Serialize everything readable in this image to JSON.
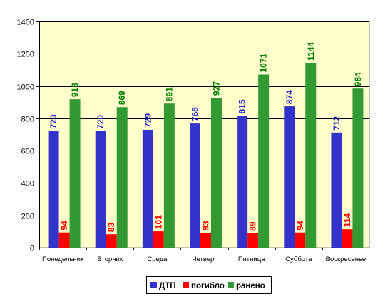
{
  "chart_data": {
    "type": "bar",
    "title": "",
    "xlabel": "",
    "ylabel": "",
    "ylim": [
      0,
      1400
    ],
    "yticks": [
      0,
      200,
      400,
      600,
      800,
      1000,
      1200,
      1400
    ],
    "grid": true,
    "legend_position": "bottom",
    "categories": [
      "Понедельник",
      "Вторник",
      "Среда",
      "Четверг",
      "Пятница",
      "Суббота",
      "Воскресенье"
    ],
    "series": [
      {
        "name": "ДТП",
        "color": "#3333cc",
        "label_color": "#2222cc",
        "values": [
          723,
          720,
          729,
          768,
          815,
          874,
          712
        ]
      },
      {
        "name": "погибло",
        "color": "#ff0000",
        "label_color": "#ff0000",
        "values": [
          94,
          83,
          101,
          93,
          89,
          94,
          114
        ]
      },
      {
        "name": "ранено",
        "color": "#339933",
        "label_color": "#008000",
        "values": [
          918,
          869,
          891,
          927,
          1071,
          1144,
          984
        ]
      }
    ],
    "plot_background": "#ffffcc"
  }
}
